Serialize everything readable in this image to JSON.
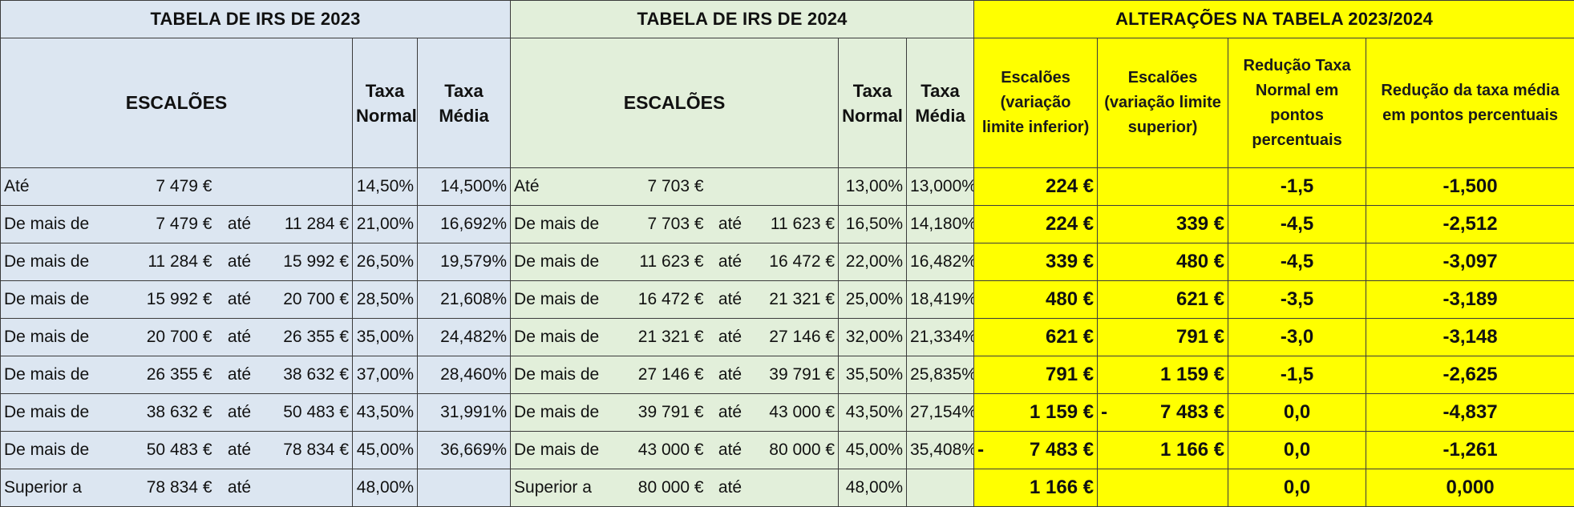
{
  "titles": {
    "t2023": "TABELA DE IRS DE 2023",
    "t2024": "TABELA DE IRS DE 2024",
    "tAlt": "ALTERAÇÕES  NA TABELA 2023/2024"
  },
  "headers": {
    "escaloes": "ESCALÕES",
    "taxa_normal_1": "Taxa",
    "taxa_normal_2": "Normal",
    "taxa_media_1": "Taxa",
    "taxa_media_2": "Média",
    "alt_col1": "Escalões (variação limite inferior)",
    "alt_col2": "Escalões (variação limite superior)",
    "alt_col3": "Redução Taxa Normal em pontos percentuais",
    "alt_col4": "Redução da taxa média em pontos percentuais"
  },
  "rows": [
    {
      "a_label": "Até",
      "a_from": "7 479 €",
      "a_ate": "",
      "a_to": "",
      "a_tn": "14,50%",
      "a_tm": "14,500%",
      "b_label": "Até",
      "b_from": "7 703 €",
      "b_ate": "",
      "b_to": "",
      "b_tn": "13,00%",
      "b_tm": "13,000%",
      "c_dash": "",
      "c_inf": "224 €",
      "d_dash": "",
      "d_sup": "",
      "e_rn": "-1,5",
      "f_rm": "-1,500"
    },
    {
      "a_label": "De mais de",
      "a_from": "7 479 €",
      "a_ate": "até",
      "a_to": "11 284 €",
      "a_tn": "21,00%",
      "a_tm": "16,692%",
      "b_label": "De mais de",
      "b_from": "7 703 €",
      "b_ate": "até",
      "b_to": "11 623 €",
      "b_tn": "16,50%",
      "b_tm": "14,180%",
      "c_dash": "",
      "c_inf": "224 €",
      "d_dash": "",
      "d_sup": "339 €",
      "e_rn": "-4,5",
      "f_rm": "-2,512"
    },
    {
      "a_label": "De mais de",
      "a_from": "11 284 €",
      "a_ate": "até",
      "a_to": "15 992 €",
      "a_tn": "26,50%",
      "a_tm": "19,579%",
      "b_label": "De mais de",
      "b_from": "11 623 €",
      "b_ate": "até",
      "b_to": "16 472 €",
      "b_tn": "22,00%",
      "b_tm": "16,482%",
      "c_dash": "",
      "c_inf": "339 €",
      "d_dash": "",
      "d_sup": "480 €",
      "e_rn": "-4,5",
      "f_rm": "-3,097"
    },
    {
      "a_label": "De mais de",
      "a_from": "15 992 €",
      "a_ate": "até",
      "a_to": "20 700 €",
      "a_tn": "28,50%",
      "a_tm": "21,608%",
      "b_label": "De mais de",
      "b_from": "16 472 €",
      "b_ate": "até",
      "b_to": "21 321 €",
      "b_tn": "25,00%",
      "b_tm": "18,419%",
      "c_dash": "",
      "c_inf": "480 €",
      "d_dash": "",
      "d_sup": "621 €",
      "e_rn": "-3,5",
      "f_rm": "-3,189"
    },
    {
      "a_label": "De mais de",
      "a_from": "20 700 €",
      "a_ate": "até",
      "a_to": "26 355 €",
      "a_tn": "35,00%",
      "a_tm": "24,482%",
      "b_label": "De mais de",
      "b_from": "21 321 €",
      "b_ate": "até",
      "b_to": "27 146 €",
      "b_tn": "32,00%",
      "b_tm": "21,334%",
      "c_dash": "",
      "c_inf": "621 €",
      "d_dash": "",
      "d_sup": "791 €",
      "e_rn": "-3,0",
      "f_rm": "-3,148"
    },
    {
      "a_label": "De mais de",
      "a_from": "26 355 €",
      "a_ate": "até",
      "a_to": "38 632 €",
      "a_tn": "37,00%",
      "a_tm": "28,460%",
      "b_label": "De mais de",
      "b_from": "27 146 €",
      "b_ate": "até",
      "b_to": "39 791 €",
      "b_tn": "35,50%",
      "b_tm": "25,835%",
      "c_dash": "",
      "c_inf": "791 €",
      "d_dash": "",
      "d_sup": "1 159 €",
      "e_rn": "-1,5",
      "f_rm": "-2,625"
    },
    {
      "a_label": "De mais de",
      "a_from": "38 632 €",
      "a_ate": "até",
      "a_to": "50 483 €",
      "a_tn": "43,50%",
      "a_tm": "31,991%",
      "b_label": "De mais de",
      "b_from": "39 791 €",
      "b_ate": "até",
      "b_to": "43 000 €",
      "b_tn": "43,50%",
      "b_tm": "27,154%",
      "c_dash": "",
      "c_inf": "1 159 €",
      "d_dash": "-",
      "d_sup": "7 483 €",
      "e_rn": "0,0",
      "f_rm": "-4,837"
    },
    {
      "a_label": "De mais de",
      "a_from": "50 483 €",
      "a_ate": "até",
      "a_to": "78 834 €",
      "a_tn": "45,00%",
      "a_tm": "36,669%",
      "b_label": "De mais de",
      "b_from": "43 000 €",
      "b_ate": "até",
      "b_to": "80 000 €",
      "b_tn": "45,00%",
      "b_tm": "35,408%",
      "c_dash": "-",
      "c_inf": "7 483 €",
      "d_dash": "",
      "d_sup": "1 166 €",
      "e_rn": "0,0",
      "f_rm": "-1,261"
    },
    {
      "a_label": "Superior a",
      "a_from": "78 834 €",
      "a_ate": "até",
      "a_to": "",
      "a_tn": "48,00%",
      "a_tm": "",
      "b_label": "Superior a",
      "b_from": "80 000 €",
      "b_ate": "até",
      "b_to": "",
      "b_tn": "48,00%",
      "b_tm": "",
      "c_dash": "",
      "c_inf": "1 166 €",
      "d_dash": "",
      "d_sup": "",
      "e_rn": "0,0",
      "f_rm": "0,000"
    }
  ]
}
